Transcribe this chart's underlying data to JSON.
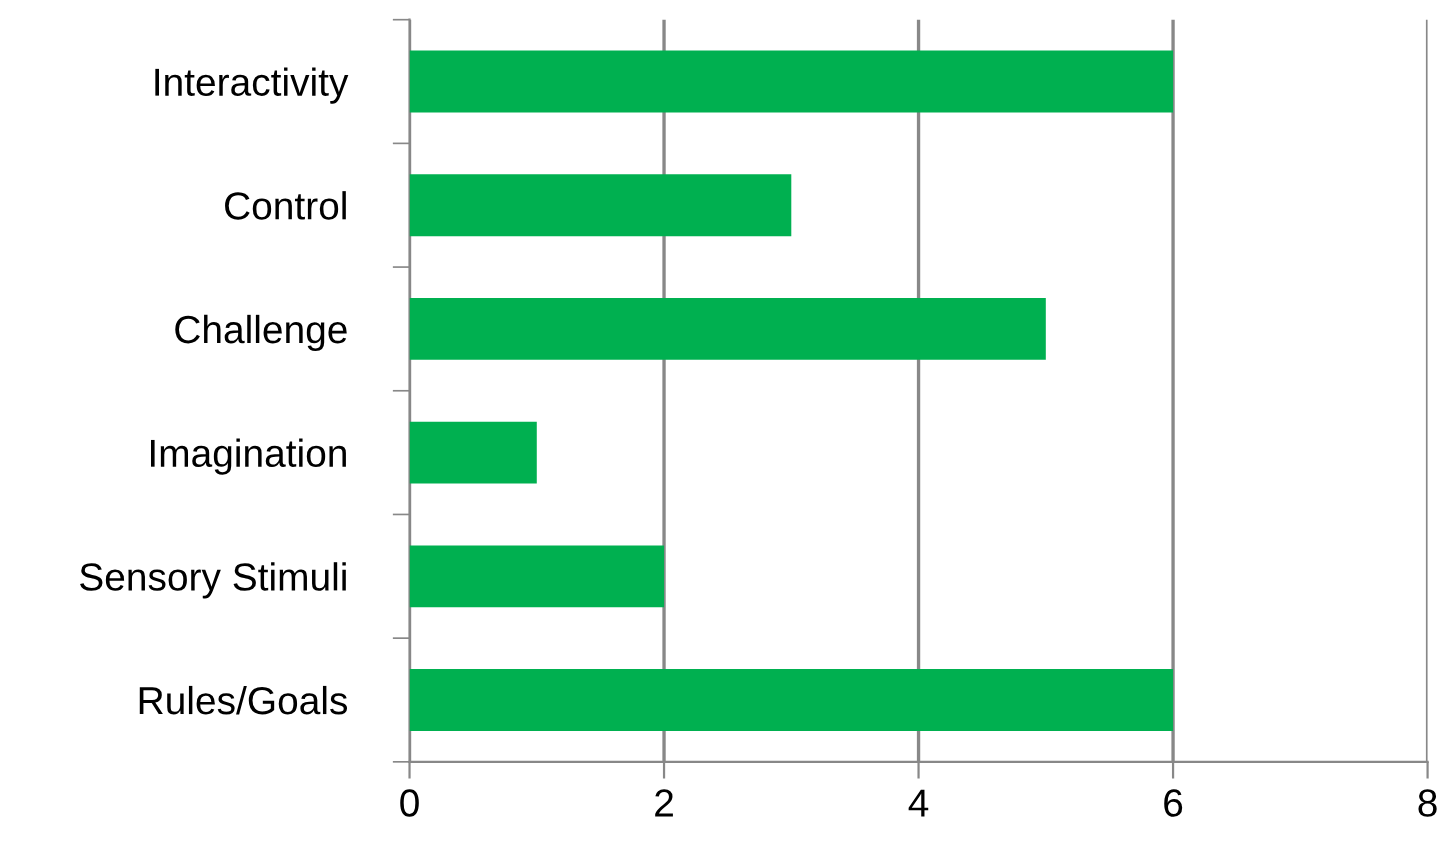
{
  "chart_data": {
    "type": "bar",
    "orientation": "horizontal",
    "categories": [
      "Interactivity",
      "Control",
      "Challenge",
      "Imagination",
      "Sensory Stimuli",
      "Rules/Goals"
    ],
    "values": [
      6,
      3,
      5,
      1,
      2,
      6
    ],
    "color": "#00b050",
    "xlim": [
      0,
      8
    ],
    "xticks": [
      0,
      2,
      4,
      6,
      8
    ],
    "grid": "x",
    "legend": false
  }
}
